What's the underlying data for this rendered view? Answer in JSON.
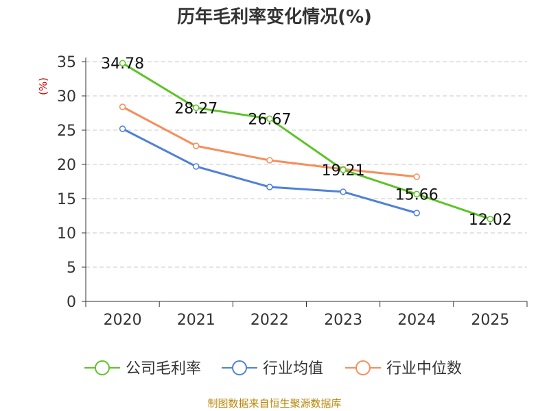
{
  "chart_data": {
    "type": "line",
    "title": "历年毛利率变化情况(%)",
    "ylabel": "(%)",
    "xlabel": "",
    "categories": [
      "2020",
      "2021",
      "2022",
      "2023",
      "2024",
      "2025"
    ],
    "ylim": [
      0,
      35
    ],
    "yticks": [
      0,
      5,
      10,
      15,
      20,
      25,
      30,
      35
    ],
    "grid": true,
    "legend_position": "bottom",
    "series": [
      {
        "name": "公司毛利率",
        "color": "#5cc427",
        "values": [
          34.78,
          28.27,
          26.67,
          19.21,
          15.66,
          12.02
        ],
        "labels": [
          "34.78",
          "28.27",
          "26.67",
          "19.21",
          "15.66",
          "12.02"
        ]
      },
      {
        "name": "行业均值",
        "color": "#4f81d9",
        "values": [
          25.2,
          19.7,
          16.7,
          16.0,
          12.9,
          null
        ]
      },
      {
        "name": "行业中位数",
        "color": "#f68e5b",
        "values": [
          28.4,
          22.7,
          20.6,
          19.3,
          18.2,
          null
        ]
      }
    ]
  },
  "source": "制图数据来自恒生聚源数据库"
}
